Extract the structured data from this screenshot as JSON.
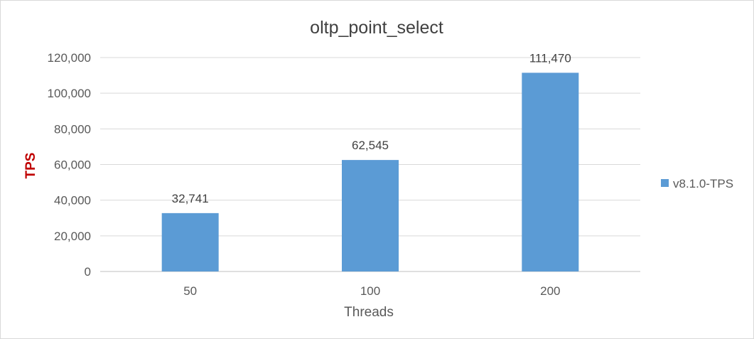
{
  "chart_data": {
    "type": "bar",
    "title": "oltp_point_select",
    "xlabel": "Threads",
    "ylabel": "TPS",
    "categories": [
      "50",
      "100",
      "200"
    ],
    "series": [
      {
        "name": "v8.1.0-TPS",
        "values": [
          32741,
          62545,
          111470
        ],
        "color": "#5b9bd5"
      }
    ],
    "data_labels": [
      "32,741",
      "62,545",
      "111,470"
    ],
    "y_ticks": [
      "0",
      "20,000",
      "40,000",
      "60,000",
      "80,000",
      "100,000",
      "120,000"
    ],
    "ylim": [
      0,
      120000
    ],
    "grid": true,
    "legend": "right",
    "ylabel_color": "#c00000"
  }
}
